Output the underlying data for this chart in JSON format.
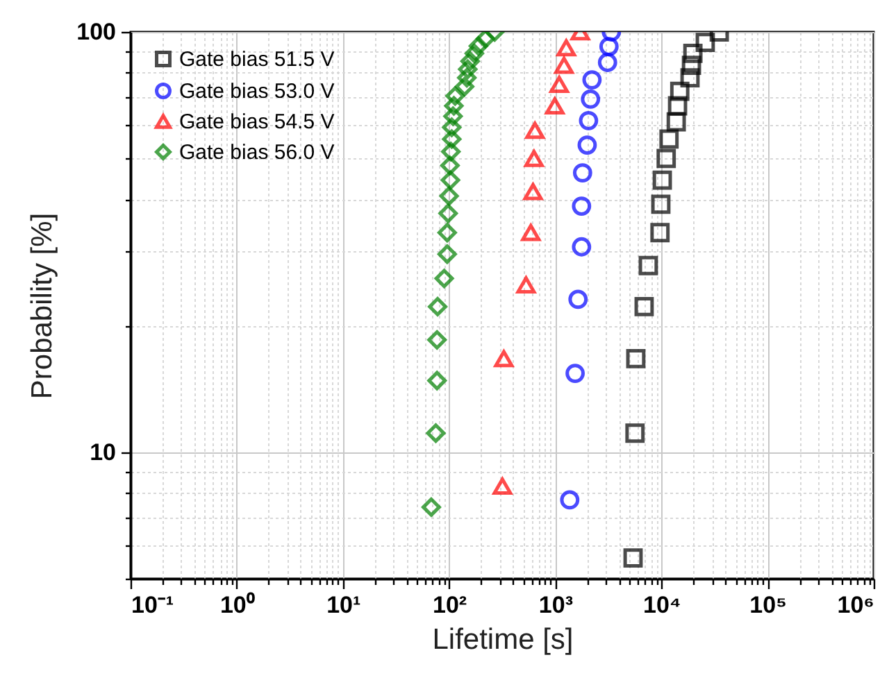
{
  "chart_data": {
    "type": "scatter",
    "xlabel": "Lifetime [s]",
    "ylabel": "Probability [%]",
    "log": "xy",
    "grid": true,
    "legend": "top left",
    "xlim": [
      0.1,
      1000000
    ],
    "ylim": [
      5,
      100
    ],
    "xticks": [
      {
        "value": 0.1,
        "label": "10⁻¹"
      },
      {
        "value": 0.2,
        "label": null
      },
      {
        "value": 0.3,
        "label": null
      },
      {
        "value": 0.4,
        "label": null
      },
      {
        "value": 0.5,
        "label": null
      },
      {
        "value": 0.6,
        "label": null
      },
      {
        "value": 0.7,
        "label": null
      },
      {
        "value": 0.8,
        "label": null
      },
      {
        "value": 0.9,
        "label": null
      },
      {
        "value": 1,
        "label": "10⁰"
      },
      {
        "value": 2,
        "label": null
      },
      {
        "value": 3,
        "label": null
      },
      {
        "value": 4,
        "label": null
      },
      {
        "value": 5,
        "label": null
      },
      {
        "value": 6,
        "label": null
      },
      {
        "value": 7,
        "label": null
      },
      {
        "value": 8,
        "label": null
      },
      {
        "value": 9,
        "label": null
      },
      {
        "value": 10,
        "label": "10¹"
      },
      {
        "value": 20,
        "label": null
      },
      {
        "value": 30,
        "label": null
      },
      {
        "value": 40,
        "label": null
      },
      {
        "value": 50,
        "label": null
      },
      {
        "value": 60,
        "label": null
      },
      {
        "value": 70,
        "label": null
      },
      {
        "value": 80,
        "label": null
      },
      {
        "value": 90,
        "label": null
      },
      {
        "value": 100,
        "label": "10²"
      },
      {
        "value": 200,
        "label": null
      },
      {
        "value": 300,
        "label": null
      },
      {
        "value": 400,
        "label": null
      },
      {
        "value": 500,
        "label": null
      },
      {
        "value": 600,
        "label": null
      },
      {
        "value": 700,
        "label": null
      },
      {
        "value": 800,
        "label": null
      },
      {
        "value": 900,
        "label": null
      },
      {
        "value": 1000,
        "label": "10³"
      },
      {
        "value": 2000,
        "label": null
      },
      {
        "value": 3000,
        "label": null
      },
      {
        "value": 4000,
        "label": null
      },
      {
        "value": 5000,
        "label": null
      },
      {
        "value": 6000,
        "label": null
      },
      {
        "value": 7000,
        "label": null
      },
      {
        "value": 8000,
        "label": null
      },
      {
        "value": 9000,
        "label": null
      },
      {
        "value": 10000,
        "label": "10⁴"
      },
      {
        "value": 20000,
        "label": null
      },
      {
        "value": 30000,
        "label": null
      },
      {
        "value": 40000,
        "label": null
      },
      {
        "value": 50000,
        "label": null
      },
      {
        "value": 60000,
        "label": null
      },
      {
        "value": 70000,
        "label": null
      },
      {
        "value": 80000,
        "label": null
      },
      {
        "value": 90000,
        "label": null
      },
      {
        "value": 100000,
        "label": "10⁵"
      },
      {
        "value": 200000,
        "label": null
      },
      {
        "value": 300000,
        "label": null
      },
      {
        "value": 400000,
        "label": null
      },
      {
        "value": 500000,
        "label": null
      },
      {
        "value": 600000,
        "label": null
      },
      {
        "value": 700000,
        "label": null
      },
      {
        "value": 800000,
        "label": null
      },
      {
        "value": 900000,
        "label": null
      },
      {
        "value": 1000000,
        "label": "10⁶"
      }
    ],
    "yticks": [
      {
        "value": 5,
        "label": null
      },
      {
        "value": 6,
        "label": null
      },
      {
        "value": 7,
        "label": null
      },
      {
        "value": 8,
        "label": null
      },
      {
        "value": 9,
        "label": null
      },
      10,
      {
        "value": 20,
        "label": null
      },
      {
        "value": 30,
        "label": null
      },
      {
        "value": 40,
        "label": null
      },
      {
        "value": 50,
        "label": null
      },
      {
        "value": 60,
        "label": null
      },
      {
        "value": 70,
        "label": null
      },
      {
        "value": 80,
        "label": null
      },
      {
        "value": 90,
        "label": null
      },
      100
    ],
    "series": [
      {
        "name": "Gate bias 51.5 V",
        "color": "#000000",
        "marker": "square",
        "x": [
          5410,
          5640,
          5740,
          6880,
          7530,
          9700,
          9880,
          10200,
          11100,
          11800,
          13800,
          14200,
          14900,
          18600,
          19200,
          19800,
          25900,
          35100
        ],
        "values": [
          5.6,
          11.1,
          16.7,
          22.2,
          27.8,
          33.3,
          38.9,
          44.4,
          50,
          55.6,
          61.1,
          66.7,
          72.2,
          77.8,
          83.3,
          88.9,
          94.4,
          100
        ]
      },
      {
        "name": "Gate bias 53.0 V",
        "color": "#0000ff",
        "marker": "circle",
        "x": [
          1370,
          1540,
          1640,
          1770,
          1770,
          1810,
          2000,
          2060,
          2150,
          2220,
          3110,
          3210,
          3380
        ],
        "values": [
          7.7,
          15.4,
          23.1,
          30.8,
          38.5,
          46.2,
          53.8,
          61.5,
          69.2,
          76.9,
          84.6,
          92.3,
          100
        ]
      },
      {
        "name": "Gate bias 54.5 V",
        "color": "#ff0000",
        "marker": "triangle",
        "x": [
          318,
          328,
          531,
          589,
          618,
          631,
          644,
          991,
          1090,
          1210,
          1270,
          1720
        ],
        "values": [
          8.3,
          16.7,
          25,
          33.3,
          41.7,
          50,
          58.3,
          66.7,
          75,
          83.3,
          91.7,
          100
        ]
      },
      {
        "name": "Gate bias 56.0 V",
        "color": "#008000",
        "marker": "diamond",
        "x": [
          68,
          75,
          77,
          77,
          78,
          90,
          96,
          96,
          98,
          100,
          103,
          102,
          104,
          106,
          106,
          109,
          111,
          114,
          140,
          147,
          150,
          158,
          173,
          189,
          220,
          269
        ],
        "values": [
          7.4,
          11.1,
          14.8,
          18.5,
          22.2,
          25.9,
          29.6,
          33.3,
          37,
          40.7,
          44.4,
          48.1,
          51.9,
          55.6,
          59.3,
          63,
          66.7,
          70.4,
          74.1,
          77.8,
          81.5,
          85.2,
          88.9,
          92.6,
          96.3,
          100
        ]
      }
    ]
  }
}
